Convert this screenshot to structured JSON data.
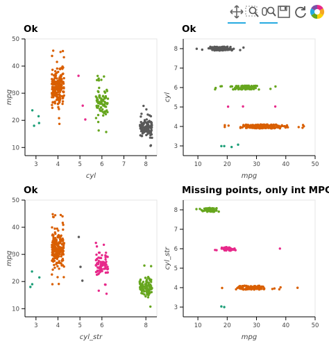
{
  "toolbar": {
    "tools": [
      {
        "name": "pan-tool-icon",
        "active": true
      },
      {
        "name": "box-zoom-tool-icon",
        "active": false
      },
      {
        "name": "wheel-zoom-tool-icon",
        "active": true
      },
      {
        "name": "save-tool-icon",
        "active": false
      },
      {
        "name": "reset-tool-icon",
        "active": false
      },
      {
        "name": "bokeh-logo-icon",
        "active": false
      }
    ]
  },
  "colors": {
    "c3": "#1b9e77",
    "c4": "#d95f02",
    "c5": "#e7298a",
    "c6": "#66a61e",
    "c8": "#595959"
  },
  "chart_data": [
    {
      "type": "scatter",
      "title": "Ok",
      "xlabel": "cyl",
      "ylabel": "mpg",
      "xlim": [
        2.5,
        8.5
      ],
      "ylim": [
        7,
        50
      ],
      "xticks": [
        3,
        4,
        5,
        6,
        7,
        8
      ],
      "yticks": [
        10,
        20,
        30,
        40,
        50
      ],
      "orientation": "vertical",
      "jitter": 0.28,
      "groups": [
        {
          "pos": 3,
          "color": "#1b9e77",
          "values": [
            21.5,
            23.7,
            19.0,
            18.0
          ]
        },
        {
          "pos": 4,
          "color": "#d95f02",
          "range": [
            18,
            46.6
          ],
          "count": 204
        },
        {
          "pos": 5,
          "color": "#e7298a",
          "values": [
            36.4,
            25.4,
            20.3
          ]
        },
        {
          "pos": 6,
          "color": "#66a61e",
          "range": [
            15,
            38
          ],
          "count": 84
        },
        {
          "pos": 8,
          "color": "#595959",
          "range": [
            9,
            26.6
          ],
          "count": 103
        }
      ]
    },
    {
      "type": "scatter",
      "title": "Ok",
      "xlabel": "mpg",
      "ylabel": "cyl",
      "xlim": [
        5,
        50
      ],
      "ylim": [
        2.5,
        8.5
      ],
      "xticks": [
        10,
        20,
        30,
        40,
        50
      ],
      "yticks": [
        3,
        4,
        5,
        6,
        7,
        8
      ],
      "orientation": "horizontal",
      "jitter": 0.1,
      "groups": [
        {
          "pos": 8,
          "color": "#595959",
          "range": [
            9,
            26.6
          ],
          "count": 103
        },
        {
          "pos": 6,
          "color": "#66a61e",
          "range": [
            15,
            38
          ],
          "count": 84
        },
        {
          "pos": 5,
          "color": "#e7298a",
          "values": [
            20.3,
            25.4,
            36.4
          ]
        },
        {
          "pos": 4,
          "color": "#d95f02",
          "range": [
            18,
            46.6
          ],
          "count": 204
        },
        {
          "pos": 3,
          "color": "#1b9e77",
          "values": [
            18.0,
            19.0,
            21.5,
            23.7
          ]
        }
      ]
    },
    {
      "type": "scatter",
      "title": "Ok",
      "xlabel": "cyl_str",
      "ylabel": "mpg",
      "xlim": [
        2.5,
        8.5
      ],
      "ylim": [
        7,
        50
      ],
      "xticks": [
        3,
        4,
        5,
        6,
        8
      ],
      "yticks": [
        10,
        20,
        30,
        40,
        50
      ],
      "orientation": "vertical",
      "jitter": 0.28,
      "groups": [
        {
          "pos": 3,
          "color": "#1b9e77",
          "values": [
            21.5,
            23.7,
            19.0,
            18.0
          ]
        },
        {
          "pos": 4,
          "color": "#d95f02",
          "range": [
            18,
            46.6
          ],
          "count": 204
        },
        {
          "pos": 5,
          "color": "#595959",
          "values": [
            36.4,
            25.4,
            20.3
          ]
        },
        {
          "pos": 6,
          "color": "#e7298a",
          "range": [
            15,
            38
          ],
          "count": 84
        },
        {
          "pos": 8,
          "color": "#66a61e",
          "range": [
            9,
            26.6
          ],
          "count": 103
        }
      ]
    },
    {
      "type": "scatter",
      "title": "Missing points, only int MPG",
      "xlabel": "mpg",
      "ylabel": "cyl_str",
      "xlim": [
        5,
        50
      ],
      "ylim": [
        2.5,
        8.5
      ],
      "xticks": [
        10,
        20,
        30,
        40,
        50
      ],
      "yticks": [
        3,
        4,
        5,
        6,
        7,
        8
      ],
      "orientation": "horizontal",
      "jitter": 0.1,
      "groups": [
        {
          "pos": 8,
          "color": "#66a61e",
          "range": [
            9,
            19
          ],
          "count": 60
        },
        {
          "pos": 6,
          "color": "#e7298a",
          "range": [
            15,
            26
          ],
          "count": 45,
          "extra": [
            38
          ]
        },
        {
          "pos": 4,
          "color": "#d95f02",
          "range": [
            18,
            39
          ],
          "count": 110,
          "extra": [
            44
          ]
        },
        {
          "pos": 3,
          "color": "#1b9e77",
          "values": [
            18,
            19
          ]
        }
      ]
    }
  ]
}
